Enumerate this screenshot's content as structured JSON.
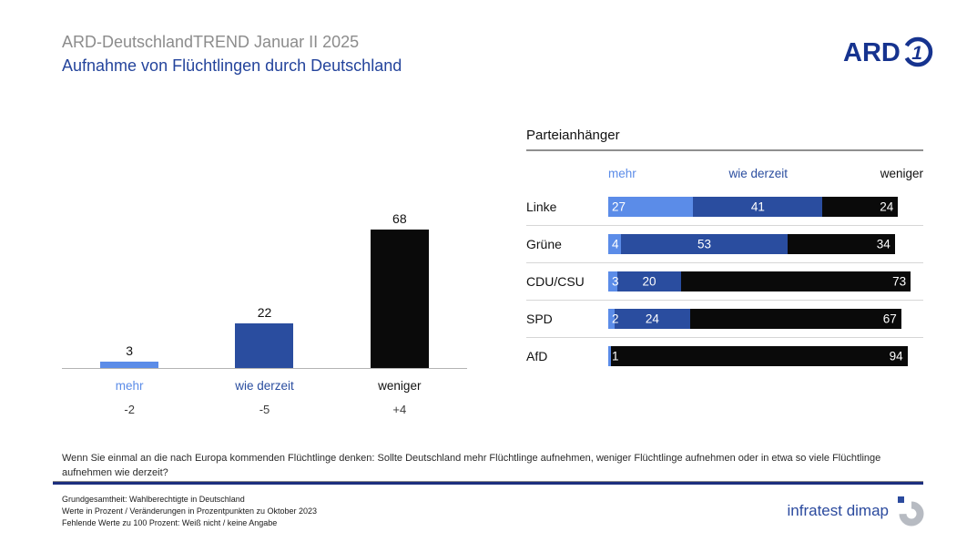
{
  "header": {
    "title": "ARD-DeutschlandTREND Januar II 2025",
    "subtitle": "Aufnahme von Flüchtlingen durch Deutschland",
    "ard_logo_text": "ARD"
  },
  "colors": {
    "mehr": "#5b8ce8",
    "wie_derzeit": "#2a4d9f",
    "weniger": "#0a0a0a",
    "title_gray": "#8c8c8c",
    "navy_rule": "#1c2e7e"
  },
  "chart_data": [
    {
      "type": "bar",
      "title": "Aufnahme von Flüchtlingen durch Deutschland",
      "categories": [
        "mehr",
        "wie derzeit",
        "weniger"
      ],
      "values": [
        3,
        22,
        68
      ],
      "changes": [
        "-2",
        "-5",
        "+4"
      ],
      "colors": [
        "#5b8ce8",
        "#2a4d9f",
        "#0a0a0a"
      ],
      "ylim": [
        0,
        100
      ],
      "grid": false,
      "legend_position": "none"
    },
    {
      "type": "bar",
      "orientation": "horizontal-stacked",
      "title": "Parteianhänger",
      "categories": [
        "Linke",
        "Grüne",
        "CDU/CSU",
        "SPD",
        "AfD"
      ],
      "series": [
        {
          "name": "mehr",
          "color": "#5b8ce8",
          "values": [
            27,
            4,
            3,
            2,
            1
          ]
        },
        {
          "name": "wie derzeit",
          "color": "#2a4d9f",
          "values": [
            41,
            53,
            20,
            24,
            null
          ]
        },
        {
          "name": "weniger",
          "color": "#0a0a0a",
          "values": [
            24,
            34,
            73,
            67,
            94
          ]
        }
      ],
      "xlim": [
        0,
        100
      ],
      "legend_position": "top"
    }
  ],
  "party_panel": {
    "title": "Parteianhänger",
    "col_mehr": "mehr",
    "col_wie": "wie derzeit",
    "col_weniger": "weniger"
  },
  "question": "Wenn Sie einmal an die nach Europa kommenden Flüchtlinge denken: Sollte Deutschland mehr Flüchtlinge aufnehmen, weniger Flüchtlinge aufnehmen oder in etwa so viele Flüchtlinge aufnehmen wie derzeit?",
  "footer": {
    "line1": "Grundgesamtheit: Wahlberechtigte in Deutschland",
    "line2": "Werte in Prozent / Veränderungen in Prozentpunkten zu Oktober 2023",
    "line3": "Fehlende Werte zu 100 Prozent: Weiß nicht / keine Angabe",
    "logo_text": "infratest dimap"
  }
}
